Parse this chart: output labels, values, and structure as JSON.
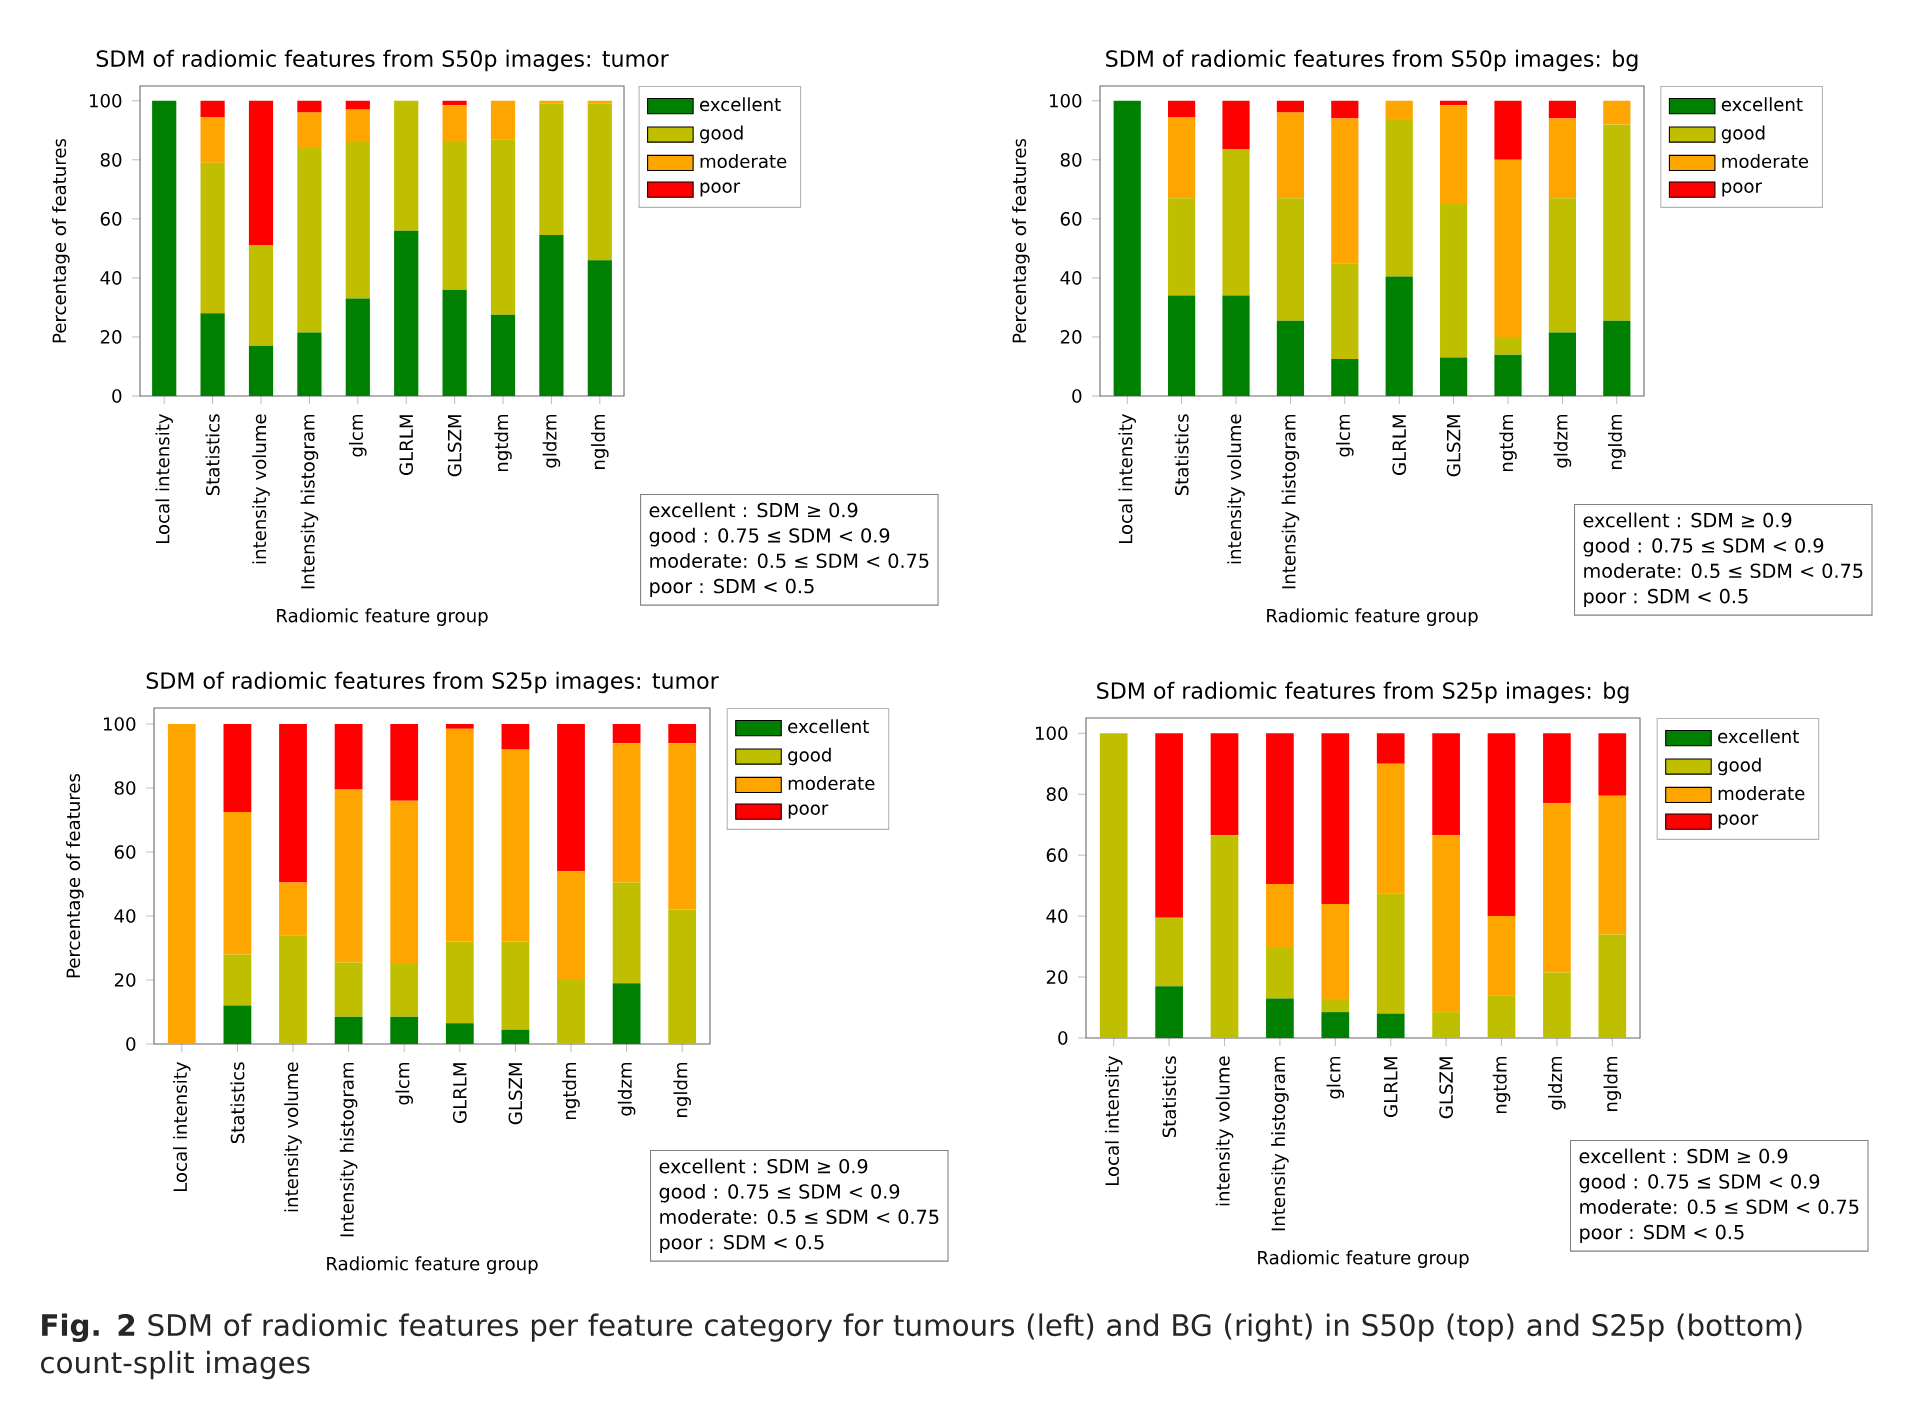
{
  "chart_data": [
    {
      "type": "bar",
      "stacked": true,
      "title": "SDM of radiomic features from S50p images: tumor",
      "xlabel": "Radiomic feature group",
      "ylabel": "Percentage of features",
      "categories": [
        "Local intensity",
        "Statistics",
        "intensity volume",
        "Intensity histogram",
        "glcm",
        "GLRLM",
        "GLSZM",
        "ngtdm",
        "gldzm",
        "ngldm"
      ],
      "series": [
        {
          "name": "excellent",
          "color": "#008000",
          "values": [
            100,
            28,
            17,
            21.5,
            33,
            56,
            36,
            27.5,
            54.5,
            46
          ]
        },
        {
          "name": "good",
          "color": "#bfbf00",
          "values": [
            0,
            51,
            34,
            62.5,
            53,
            44,
            50,
            59.5,
            44.5,
            53
          ]
        },
        {
          "name": "moderate",
          "color": "#ffa500",
          "values": [
            0,
            15.5,
            0,
            12,
            11,
            0,
            12.5,
            13,
            1,
            1
          ]
        },
        {
          "name": "poor",
          "color": "#ff0000",
          "values": [
            0,
            5.5,
            49,
            4,
            3,
            0,
            1.5,
            0,
            0,
            0
          ]
        }
      ],
      "ylim": [
        0,
        105
      ],
      "yticks": [
        0,
        20,
        40,
        60,
        80,
        100
      ],
      "legend": "top right",
      "annotations": [
        "excellent : SDM ≥ 0.9",
        "good : 0.75 ≤ SDM < 0.9",
        "moderate: 0.5 ≤ SDM < 0.75",
        "poor : SDM < 0.5"
      ]
    },
    {
      "type": "bar",
      "stacked": true,
      "title": "SDM of radiomic features from S50p images: bg",
      "xlabel": "Radiomic feature group",
      "ylabel": "Percentage of features",
      "categories": [
        "Local intensity",
        "Statistics",
        "intensity volume",
        "Intensity histogram",
        "glcm",
        "GLRLM",
        "GLSZM",
        "ngtdm",
        "gldzm",
        "ngldm"
      ],
      "series": [
        {
          "name": "excellent",
          "color": "#008000",
          "values": [
            100,
            34,
            34,
            25.5,
            12.5,
            40.5,
            13,
            14,
            21.5,
            25.5
          ]
        },
        {
          "name": "good",
          "color": "#bfbf00",
          "values": [
            0,
            33,
            49.5,
            41.5,
            32.5,
            53,
            52,
            6,
            45.5,
            66.5
          ]
        },
        {
          "name": "moderate",
          "color": "#ffa500",
          "values": [
            0,
            27.5,
            0,
            29,
            49,
            6.5,
            33.5,
            60,
            27,
            8
          ]
        },
        {
          "name": "poor",
          "color": "#ff0000",
          "values": [
            0,
            5.5,
            16.5,
            4,
            6,
            0,
            1.5,
            20,
            6,
            0
          ]
        }
      ],
      "ylim": [
        0,
        105
      ],
      "yticks": [
        0,
        20,
        40,
        60,
        80,
        100
      ],
      "legend": "top right",
      "annotations": [
        "excellent : SDM ≥ 0.9",
        "good : 0.75 ≤ SDM < 0.9",
        "moderate: 0.5 ≤ SDM < 0.75",
        "poor : SDM < 0.5"
      ]
    },
    {
      "type": "bar",
      "stacked": true,
      "title": "SDM of radiomic features from S25p images: tumor",
      "xlabel": "Radiomic feature group",
      "ylabel": "Percentage of features",
      "categories": [
        "Local intensity",
        "Statistics",
        "intensity volume",
        "Intensity histogram",
        "glcm",
        "GLRLM",
        "GLSZM",
        "ngtdm",
        "gldzm",
        "ngldm"
      ],
      "series": [
        {
          "name": "excellent",
          "color": "#008000",
          "values": [
            0,
            12,
            0,
            8.5,
            8.5,
            6.5,
            4.5,
            0,
            19,
            0
          ]
        },
        {
          "name": "good",
          "color": "#bfbf00",
          "values": [
            0,
            16,
            34,
            17,
            16.5,
            25.5,
            27.5,
            20,
            31.5,
            42
          ]
        },
        {
          "name": "moderate",
          "color": "#ffa500",
          "values": [
            100,
            44.5,
            16.5,
            54,
            51,
            66.5,
            60,
            34,
            43.5,
            52
          ]
        },
        {
          "name": "poor",
          "color": "#ff0000",
          "values": [
            0,
            27.5,
            49.5,
            20.5,
            24,
            1.5,
            8,
            46,
            6,
            6
          ]
        }
      ],
      "ylim": [
        0,
        105
      ],
      "yticks": [
        0,
        20,
        40,
        60,
        80,
        100
      ],
      "legend": "top right",
      "annotations": [
        "excellent : SDM ≥ 0.9",
        "good : 0.75 ≤ SDM < 0.9",
        "moderate: 0.5 ≤ SDM < 0.75",
        "poor : SDM < 0.5"
      ]
    },
    {
      "type": "bar",
      "stacked": true,
      "title": "SDM of radiomic features from S25p images: bg",
      "xlabel": "Radiomic feature group",
      "categories": [
        "Local intensity",
        "Statistics",
        "intensity volume",
        "Intensity histogram",
        "glcm",
        "GLRLM",
        "GLSZM",
        "ngtdm",
        "gldzm",
        "ngldm"
      ],
      "series": [
        {
          "name": "excellent",
          "color": "#008000",
          "values": [
            0,
            17,
            0,
            13,
            8.5,
            8,
            0,
            0,
            0,
            0
          ]
        },
        {
          "name": "good",
          "color": "#bfbf00",
          "values": [
            100,
            22.5,
            66.5,
            16.5,
            4,
            39.5,
            8.5,
            14,
            21.5,
            34
          ]
        },
        {
          "name": "moderate",
          "color": "#ffa500",
          "values": [
            0,
            0,
            0,
            21,
            31.5,
            42.5,
            58,
            26,
            55.5,
            45.5
          ]
        },
        {
          "name": "poor",
          "color": "#ff0000",
          "values": [
            0,
            60.5,
            33.5,
            49.5,
            56,
            10,
            33.5,
            60,
            23,
            20.5
          ]
        }
      ],
      "ylim": [
        0,
        105
      ],
      "yticks": [
        0,
        20,
        40,
        60,
        80,
        100
      ],
      "legend": "top right",
      "annotations": [
        "excellent : SDM ≥ 0.9",
        "good : 0.75 ≤ SDM < 0.9",
        "moderate: 0.5 ≤ SDM < 0.75",
        "poor : SDM < 0.5",
        "**Fig. 2** SDM of radiomic features per feature category for tumours (left) and BG (right) in S50p (top) and S25p (bottom) count-split images"
      ]
    }
  ]
}
